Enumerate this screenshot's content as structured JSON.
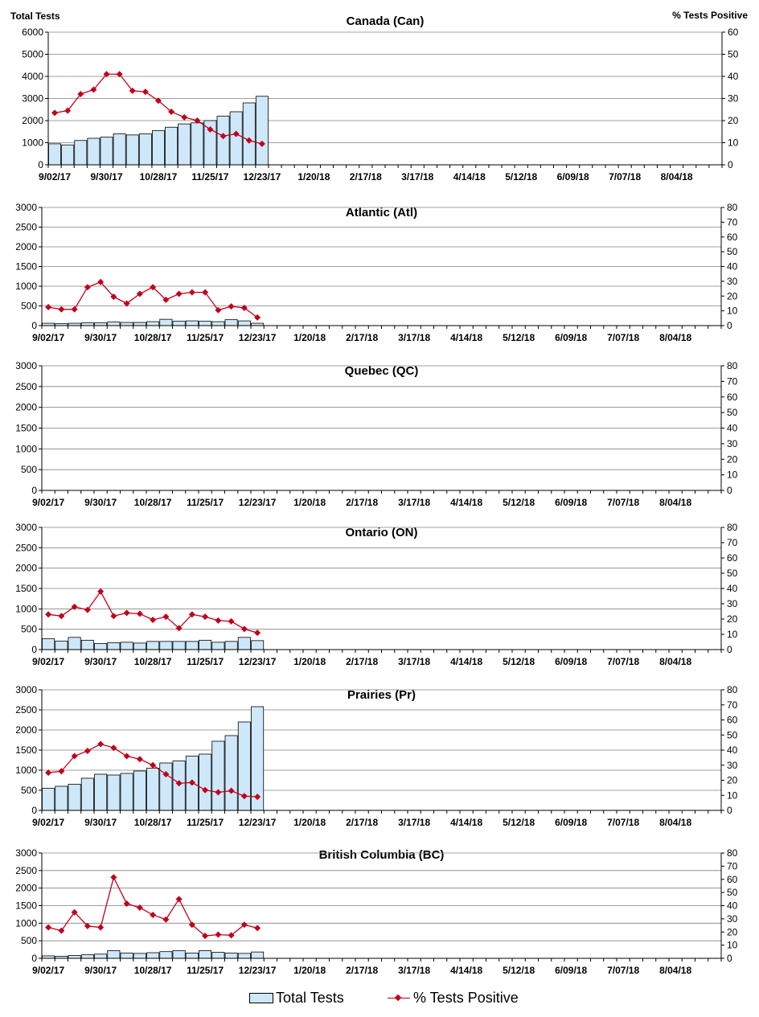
{
  "header": {
    "left_label": "Total Tests",
    "right_label": "% Tests Positive"
  },
  "legend": {
    "bar_label": "Total Tests",
    "line_label": "% Tests Positive"
  },
  "colors": {
    "bar_fill": "#cfe8f9",
    "line": "#c0001a"
  },
  "x_tick_labels": [
    "9/02/17",
    "9/30/17",
    "10/28/17",
    "11/25/17",
    "12/23/17",
    "1/20/18",
    "2/17/18",
    "3/17/18",
    "4/14/18",
    "5/12/18",
    "6/09/18",
    "7/07/18",
    "8/04/18"
  ],
  "chart_data": [
    {
      "type": "bar",
      "title": "Canada (Can)",
      "ylim_left": [
        0,
        6000
      ],
      "yticks_left": [
        0,
        1000,
        2000,
        3000,
        4000,
        5000,
        6000
      ],
      "ylim_right": [
        0,
        60
      ],
      "yticks_right": [
        0,
        10,
        20,
        30,
        40,
        50,
        60
      ],
      "series": [
        {
          "name": "Total Tests",
          "values": [
            950,
            900,
            1100,
            1200,
            1250,
            1400,
            1350,
            1400,
            1550,
            1700,
            1850,
            1900,
            2000,
            2200,
            2400,
            2800,
            3100
          ]
        },
        {
          "name": "% Tests Positive",
          "values": [
            23.5,
            24.5,
            32,
            34,
            41,
            41,
            33.5,
            33,
            29,
            24,
            21.5,
            20,
            16,
            13,
            14,
            11,
            9.5
          ]
        }
      ]
    },
    {
      "type": "bar",
      "title": "Atlantic (Atl)",
      "ylim_left": [
        0,
        3000
      ],
      "yticks_left": [
        0,
        500,
        1000,
        1500,
        2000,
        2500,
        3000
      ],
      "ylim_right": [
        0,
        80
      ],
      "yticks_right": [
        0,
        10,
        20,
        30,
        40,
        50,
        60,
        70,
        80
      ],
      "series": [
        {
          "name": "Total Tests",
          "values": [
            60,
            50,
            60,
            70,
            70,
            90,
            80,
            80,
            100,
            160,
            110,
            120,
            110,
            100,
            150,
            120,
            60
          ]
        },
        {
          "name": "% Tests Positive",
          "values": [
            12.5,
            11,
            11,
            26,
            29.5,
            19.5,
            15,
            21.5,
            26,
            17.5,
            21.5,
            22.5,
            22.5,
            10.5,
            13,
            12,
            5.5
          ]
        }
      ]
    },
    {
      "type": "bar",
      "title": "Quebec (QC)",
      "ylim_left": [
        0,
        3000
      ],
      "yticks_left": [
        0,
        500,
        1000,
        1500,
        2000,
        2500,
        3000
      ],
      "ylim_right": [
        0,
        80
      ],
      "yticks_right": [
        0,
        10,
        20,
        30,
        40,
        50,
        60,
        70,
        80
      ],
      "series": [
        {
          "name": "Total Tests",
          "values": []
        },
        {
          "name": "% Tests Positive",
          "values": []
        }
      ]
    },
    {
      "type": "bar",
      "title": "Ontario (ON)",
      "ylim_left": [
        0,
        3000
      ],
      "yticks_left": [
        0,
        500,
        1000,
        1500,
        2000,
        2500,
        3000
      ],
      "ylim_right": [
        0,
        80
      ],
      "yticks_right": [
        0,
        10,
        20,
        30,
        40,
        50,
        60,
        70,
        80
      ],
      "series": [
        {
          "name": "Total Tests",
          "values": [
            270,
            210,
            300,
            230,
            150,
            170,
            180,
            160,
            200,
            200,
            200,
            200,
            230,
            180,
            200,
            300,
            220
          ]
        },
        {
          "name": "% Tests Positive",
          "values": [
            23,
            22,
            28,
            26,
            38,
            22,
            24,
            23.5,
            19.5,
            21.5,
            14,
            23,
            21.5,
            19,
            18.5,
            13.5,
            11
          ]
        }
      ]
    },
    {
      "type": "bar",
      "title": "Prairies (Pr)",
      "ylim_left": [
        0,
        3000
      ],
      "yticks_left": [
        0,
        500,
        1000,
        1500,
        2000,
        2500,
        3000
      ],
      "ylim_right": [
        0,
        80
      ],
      "yticks_right": [
        0,
        10,
        20,
        30,
        40,
        50,
        60,
        70,
        80
      ],
      "series": [
        {
          "name": "Total Tests",
          "values": [
            550,
            600,
            650,
            800,
            900,
            880,
            920,
            980,
            1050,
            1180,
            1230,
            1350,
            1400,
            1720,
            1860,
            2200,
            2580
          ]
        },
        {
          "name": "% Tests Positive",
          "values": [
            25,
            26,
            36,
            39.5,
            44,
            41.5,
            36,
            34,
            30,
            24,
            18,
            18.5,
            13.5,
            12,
            13,
            9.5,
            9
          ]
        }
      ]
    },
    {
      "type": "bar",
      "title": "British Columbia (BC)",
      "ylim_left": [
        0,
        3000
      ],
      "yticks_left": [
        0,
        500,
        1000,
        1500,
        2000,
        2500,
        3000
      ],
      "ylim_right": [
        0,
        80
      ],
      "yticks_right": [
        0,
        10,
        20,
        30,
        40,
        50,
        60,
        70,
        80
      ],
      "series": [
        {
          "name": "Total Tests",
          "values": [
            70,
            60,
            80,
            100,
            120,
            220,
            150,
            140,
            160,
            190,
            220,
            150,
            220,
            170,
            150,
            140,
            180
          ]
        },
        {
          "name": "% Tests Positive",
          "values": [
            23.5,
            21,
            35,
            24.5,
            23.5,
            61.5,
            41.5,
            38.5,
            33,
            29.5,
            45,
            25.5,
            17,
            18,
            17.5,
            25.5,
            23
          ]
        }
      ]
    }
  ]
}
